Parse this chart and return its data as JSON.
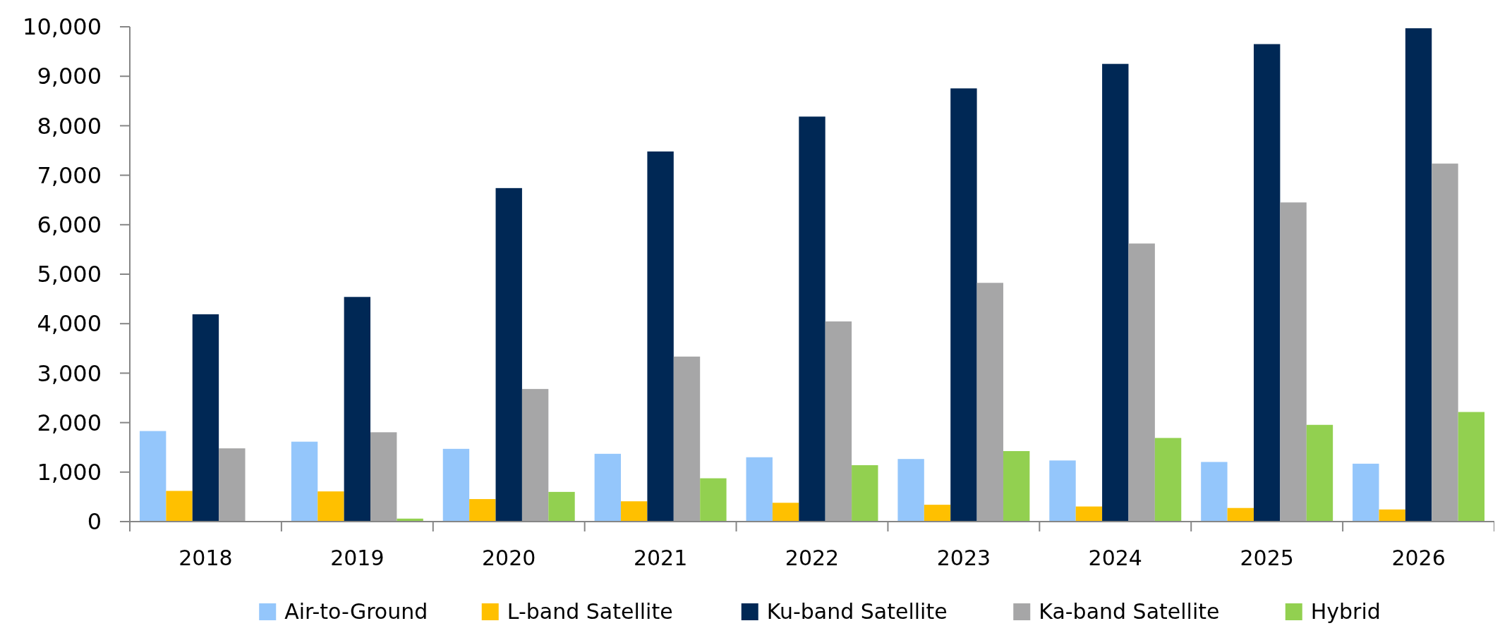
{
  "chart_data": {
    "type": "bar",
    "categories": [
      "2018",
      "2019",
      "2020",
      "2021",
      "2022",
      "2023",
      "2024",
      "2025",
      "2026"
    ],
    "series": [
      {
        "name": "Air-to-Ground",
        "color": "#94c6fb",
        "values": [
          1830,
          1615,
          1470,
          1370,
          1300,
          1265,
          1235,
          1205,
          1170
        ]
      },
      {
        "name": "L-band Satellite",
        "color": "#ffc000",
        "values": [
          620,
          610,
          455,
          410,
          380,
          340,
          305,
          275,
          245
        ]
      },
      {
        "name": "Ku-band Satellite",
        "color": "#002855",
        "values": [
          4190,
          4540,
          6740,
          7480,
          8185,
          8755,
          9250,
          9650,
          9970
        ]
      },
      {
        "name": "Ka-band Satellite",
        "color": "#a6a6a7",
        "values": [
          1480,
          1805,
          2680,
          3335,
          4045,
          4825,
          5620,
          6450,
          7235
        ]
      },
      {
        "name": "Hybrid",
        "color": "#92d050",
        "values": [
          10,
          60,
          600,
          875,
          1140,
          1425,
          1690,
          1955,
          2215
        ]
      }
    ],
    "ylim": [
      0,
      10000
    ],
    "yticks": [
      {
        "value": 0,
        "label": "0"
      },
      {
        "value": 1000,
        "label": "1,000"
      },
      {
        "value": 2000,
        "label": "2,000"
      },
      {
        "value": 3000,
        "label": "3,000"
      },
      {
        "value": 4000,
        "label": "4,000"
      },
      {
        "value": 5000,
        "label": "5,000"
      },
      {
        "value": 6000,
        "label": "6,000"
      },
      {
        "value": 7000,
        "label": "7,000"
      },
      {
        "value": 8000,
        "label": "8,000"
      },
      {
        "value": 9000,
        "label": "9,000"
      },
      {
        "value": 10000,
        "label": "10,000"
      }
    ],
    "grid": false,
    "legend": "bottom"
  }
}
